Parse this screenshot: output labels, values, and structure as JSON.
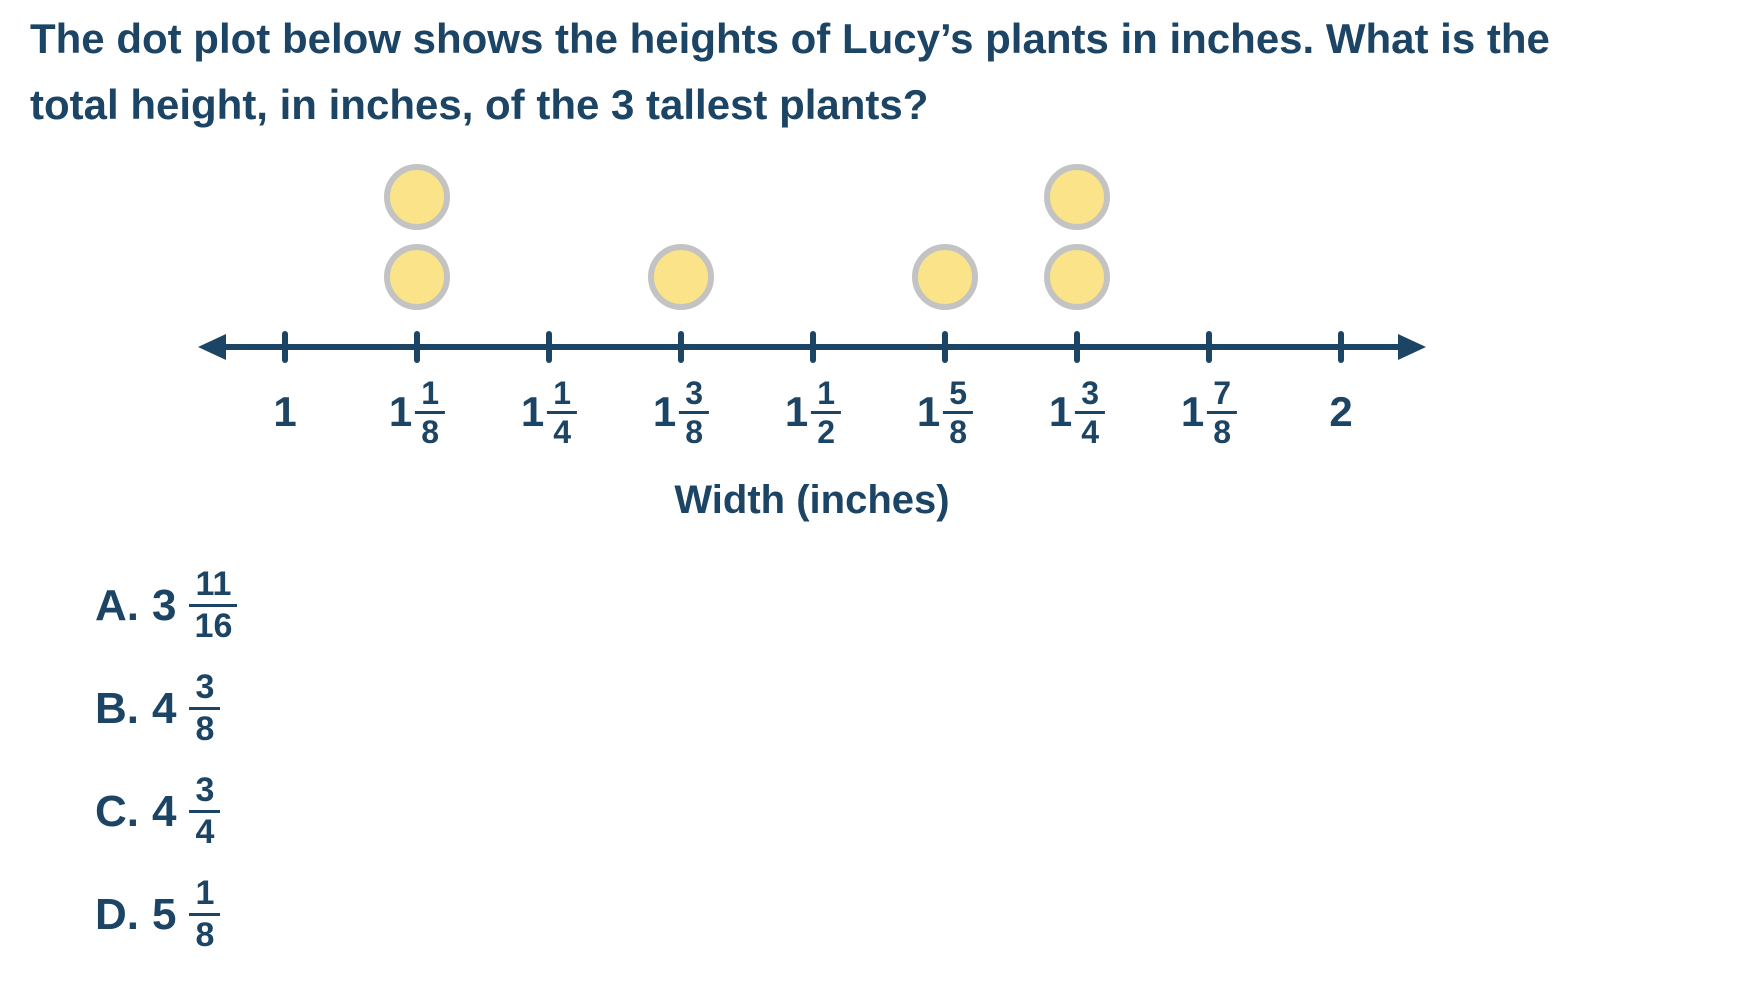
{
  "colors": {
    "text": "#1C4464",
    "axis": "#1C4464",
    "dot_fill": "#FAE388",
    "dot_border": "#C3C3C3",
    "background": "#FFFFFF"
  },
  "question": {
    "line1": "The dot plot below shows the heights of Lucy’s plants in inches. What is the",
    "line2": "total height, in inches, of the 3 tallest plants?"
  },
  "chart_data": {
    "type": "dot-plot",
    "title": "",
    "axis_label": "Width (inches)",
    "x_range": [
      1,
      2
    ],
    "x_step": "1/8",
    "ticks": [
      {
        "label": "1",
        "whole": "1",
        "num": "",
        "den": ""
      },
      {
        "label": "1 1/8",
        "whole": "1",
        "num": "1",
        "den": "8"
      },
      {
        "label": "1 1/4",
        "whole": "1",
        "num": "1",
        "den": "4"
      },
      {
        "label": "1 3/8",
        "whole": "1",
        "num": "3",
        "den": "8"
      },
      {
        "label": "1 1/2",
        "whole": "1",
        "num": "1",
        "den": "2"
      },
      {
        "label": "1 5/8",
        "whole": "1",
        "num": "5",
        "den": "8"
      },
      {
        "label": "1 3/4",
        "whole": "1",
        "num": "3",
        "den": "4"
      },
      {
        "label": "1 7/8",
        "whole": "1",
        "num": "7",
        "den": "8"
      },
      {
        "label": "2",
        "whole": "2",
        "num": "",
        "den": ""
      }
    ],
    "dot_counts": [
      0,
      2,
      0,
      1,
      0,
      1,
      2,
      0,
      0
    ],
    "dot_values_inches": [
      "1 1/8",
      "1 1/8",
      "1 3/8",
      "1 5/8",
      "1 3/4",
      "1 3/4"
    ]
  },
  "options": [
    {
      "id": "a",
      "letter": "A.",
      "whole": "3",
      "num": "11",
      "den": "16"
    },
    {
      "id": "b",
      "letter": "B.",
      "whole": "4",
      "num": "3",
      "den": "8"
    },
    {
      "id": "c",
      "letter": "C.",
      "whole": "4",
      "num": "3",
      "den": "4"
    },
    {
      "id": "d",
      "letter": "D.",
      "whole": "5",
      "num": "1",
      "den": "8"
    }
  ]
}
